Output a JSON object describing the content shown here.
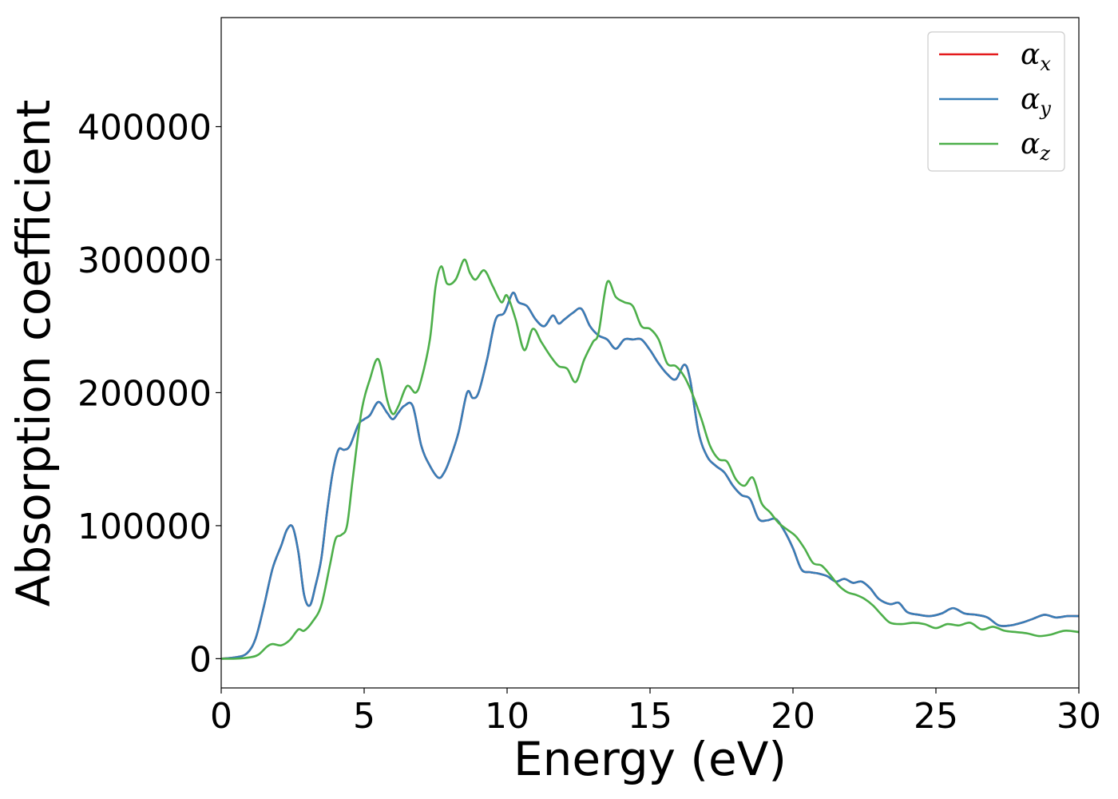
{
  "chart_data": {
    "type": "line",
    "title": "",
    "xlabel": "Energy (eV)",
    "ylabel": "Absorption coefficient",
    "xlim": [
      0,
      30
    ],
    "ylim": [
      -22000,
      482000
    ],
    "xticks": [
      0,
      5,
      10,
      15,
      20,
      25,
      30
    ],
    "xtick_labels": [
      "0",
      "5",
      "10",
      "15",
      "20",
      "25",
      "30"
    ],
    "yticks": [
      0,
      100000,
      200000,
      300000,
      400000
    ],
    "ytick_labels": [
      "0",
      "100000",
      "200000",
      "300000",
      "400000"
    ],
    "grid": false,
    "legend_position": "top-right",
    "series": [
      {
        "name": "α_x",
        "legend_symbol": "α",
        "legend_subscript": "x",
        "color": "#e41a1c",
        "x": [
          0,
          0.5,
          0.9,
          1.2,
          1.5,
          1.8,
          2.1,
          2.3,
          2.5,
          2.7,
          2.9,
          3.1,
          3.3,
          3.5,
          3.7,
          3.9,
          4.1,
          4.3,
          4.5,
          4.8,
          5.0,
          5.2,
          5.5,
          5.8,
          6.0,
          6.2,
          6.4,
          6.7,
          7.0,
          7.3,
          7.6,
          7.8,
          8.0,
          8.3,
          8.6,
          8.8,
          9.0,
          9.3,
          9.6,
          9.9,
          10.2,
          10.4,
          10.7,
          11.0,
          11.3,
          11.6,
          11.8,
          12.0,
          12.3,
          12.6,
          12.9,
          13.2,
          13.5,
          13.8,
          14.1,
          14.4,
          14.7,
          15.0,
          15.3,
          15.6,
          15.9,
          16.2,
          16.4,
          16.7,
          17.0,
          17.3,
          17.6,
          17.9,
          18.2,
          18.5,
          18.8,
          19.1,
          19.4,
          19.7,
          20.0,
          20.3,
          20.6,
          20.9,
          21.2,
          21.5,
          21.8,
          22.1,
          22.4,
          22.7,
          23.0,
          23.4,
          23.7,
          24.0,
          24.4,
          24.8,
          25.2,
          25.6,
          26.0,
          26.4,
          26.8,
          27.2,
          27.6,
          28.0,
          28.4,
          28.8,
          29.2,
          29.6,
          30.0
        ],
        "y": [
          0,
          1000,
          4000,
          15000,
          40000,
          68000,
          85000,
          97000,
          99000,
          80000,
          48000,
          40000,
          55000,
          75000,
          110000,
          140000,
          157000,
          157000,
          160000,
          176000,
          180000,
          183000,
          193000,
          185000,
          180000,
          185000,
          190000,
          190000,
          160000,
          145000,
          136000,
          140000,
          150000,
          170000,
          200000,
          196000,
          200000,
          225000,
          255000,
          260000,
          275000,
          268000,
          265000,
          255000,
          250000,
          258000,
          252000,
          255000,
          260000,
          263000,
          250000,
          243000,
          240000,
          233000,
          240000,
          240000,
          240000,
          232000,
          222000,
          214000,
          210000,
          221000,
          210000,
          170000,
          152000,
          145000,
          140000,
          130000,
          123000,
          120000,
          105000,
          104000,
          105000,
          96000,
          83000,
          67000,
          65000,
          64000,
          62000,
          58000,
          60000,
          57000,
          58000,
          53000,
          45000,
          41000,
          42000,
          35000,
          33000,
          32000,
          34000,
          38000,
          34000,
          33000,
          31000,
          25000,
          25000,
          27000,
          30000,
          33000,
          31000,
          32000,
          32000
        ]
      },
      {
        "name": "α_y",
        "legend_symbol": "α",
        "legend_subscript": "y",
        "color": "#377eb8",
        "x": [
          0,
          0.5,
          0.9,
          1.2,
          1.5,
          1.8,
          2.1,
          2.3,
          2.5,
          2.7,
          2.9,
          3.1,
          3.3,
          3.5,
          3.7,
          3.9,
          4.1,
          4.3,
          4.5,
          4.8,
          5.0,
          5.2,
          5.5,
          5.8,
          6.0,
          6.2,
          6.4,
          6.7,
          7.0,
          7.3,
          7.6,
          7.8,
          8.0,
          8.3,
          8.6,
          8.8,
          9.0,
          9.3,
          9.6,
          9.9,
          10.2,
          10.4,
          10.7,
          11.0,
          11.3,
          11.6,
          11.8,
          12.0,
          12.3,
          12.6,
          12.9,
          13.2,
          13.5,
          13.8,
          14.1,
          14.4,
          14.7,
          15.0,
          15.3,
          15.6,
          15.9,
          16.2,
          16.4,
          16.7,
          17.0,
          17.3,
          17.6,
          17.9,
          18.2,
          18.5,
          18.8,
          19.1,
          19.4,
          19.7,
          20.0,
          20.3,
          20.6,
          20.9,
          21.2,
          21.5,
          21.8,
          22.1,
          22.4,
          22.7,
          23.0,
          23.4,
          23.7,
          24.0,
          24.4,
          24.8,
          25.2,
          25.6,
          26.0,
          26.4,
          26.8,
          27.2,
          27.6,
          28.0,
          28.4,
          28.8,
          29.2,
          29.6,
          30.0
        ],
        "y": [
          0,
          1000,
          4000,
          15000,
          40000,
          68000,
          85000,
          97000,
          99000,
          80000,
          48000,
          40000,
          55000,
          75000,
          110000,
          140000,
          157000,
          157000,
          160000,
          176000,
          180000,
          183000,
          193000,
          185000,
          180000,
          185000,
          190000,
          190000,
          160000,
          145000,
          136000,
          140000,
          150000,
          170000,
          200000,
          196000,
          200000,
          225000,
          255000,
          260000,
          275000,
          268000,
          265000,
          255000,
          250000,
          258000,
          252000,
          255000,
          260000,
          263000,
          250000,
          243000,
          240000,
          233000,
          240000,
          240000,
          240000,
          232000,
          222000,
          214000,
          210000,
          221000,
          210000,
          170000,
          152000,
          145000,
          140000,
          130000,
          123000,
          120000,
          105000,
          104000,
          105000,
          96000,
          83000,
          67000,
          65000,
          64000,
          62000,
          58000,
          60000,
          57000,
          58000,
          53000,
          45000,
          41000,
          42000,
          35000,
          33000,
          32000,
          34000,
          38000,
          34000,
          33000,
          31000,
          25000,
          25000,
          27000,
          30000,
          33000,
          31000,
          32000,
          32000
        ]
      },
      {
        "name": "α_z",
        "legend_symbol": "α",
        "legend_subscript": "z",
        "color": "#4daf4a",
        "x": [
          0,
          0.5,
          1.0,
          1.3,
          1.6,
          1.8,
          2.1,
          2.4,
          2.7,
          2.9,
          3.2,
          3.5,
          3.8,
          4.0,
          4.2,
          4.4,
          4.6,
          4.9,
          5.2,
          5.5,
          5.8,
          6.0,
          6.2,
          6.5,
          6.8,
          7.0,
          7.3,
          7.5,
          7.7,
          7.9,
          8.2,
          8.5,
          8.7,
          8.9,
          9.2,
          9.5,
          9.8,
          10.0,
          10.3,
          10.6,
          10.9,
          11.2,
          11.5,
          11.8,
          12.1,
          12.4,
          12.7,
          13.0,
          13.2,
          13.5,
          13.8,
          14.1,
          14.4,
          14.7,
          15.0,
          15.3,
          15.6,
          15.9,
          16.2,
          16.5,
          16.8,
          17.1,
          17.4,
          17.7,
          18.0,
          18.3,
          18.6,
          18.9,
          19.2,
          19.5,
          19.8,
          20.1,
          20.4,
          20.7,
          21.0,
          21.3,
          21.6,
          21.9,
          22.2,
          22.5,
          22.8,
          23.1,
          23.4,
          23.8,
          24.2,
          24.6,
          25.0,
          25.4,
          25.8,
          26.2,
          26.6,
          27.0,
          27.4,
          27.8,
          28.2,
          28.6,
          29.0,
          29.5,
          30.0
        ],
        "y": [
          0,
          0,
          1000,
          3000,
          9000,
          11000,
          10000,
          14000,
          22000,
          21000,
          28000,
          40000,
          70000,
          90000,
          93000,
          100000,
          135000,
          185000,
          210000,
          225000,
          195000,
          184000,
          190000,
          205000,
          200000,
          210000,
          240000,
          280000,
          295000,
          282000,
          285000,
          300000,
          290000,
          285000,
          292000,
          280000,
          268000,
          273000,
          255000,
          232000,
          248000,
          238000,
          228000,
          220000,
          218000,
          208000,
          225000,
          238000,
          245000,
          283000,
          272000,
          268000,
          265000,
          250000,
          248000,
          240000,
          222000,
          220000,
          212000,
          198000,
          180000,
          160000,
          150000,
          148000,
          135000,
          130000,
          136000,
          117000,
          110000,
          102000,
          97000,
          92000,
          83000,
          72000,
          70000,
          63000,
          55000,
          50000,
          48000,
          45000,
          40000,
          33000,
          27000,
          26000,
          27000,
          26000,
          23000,
          26000,
          25000,
          27000,
          22000,
          24000,
          21000,
          20000,
          19000,
          17000,
          18000,
          21000,
          20000
        ]
      }
    ]
  }
}
